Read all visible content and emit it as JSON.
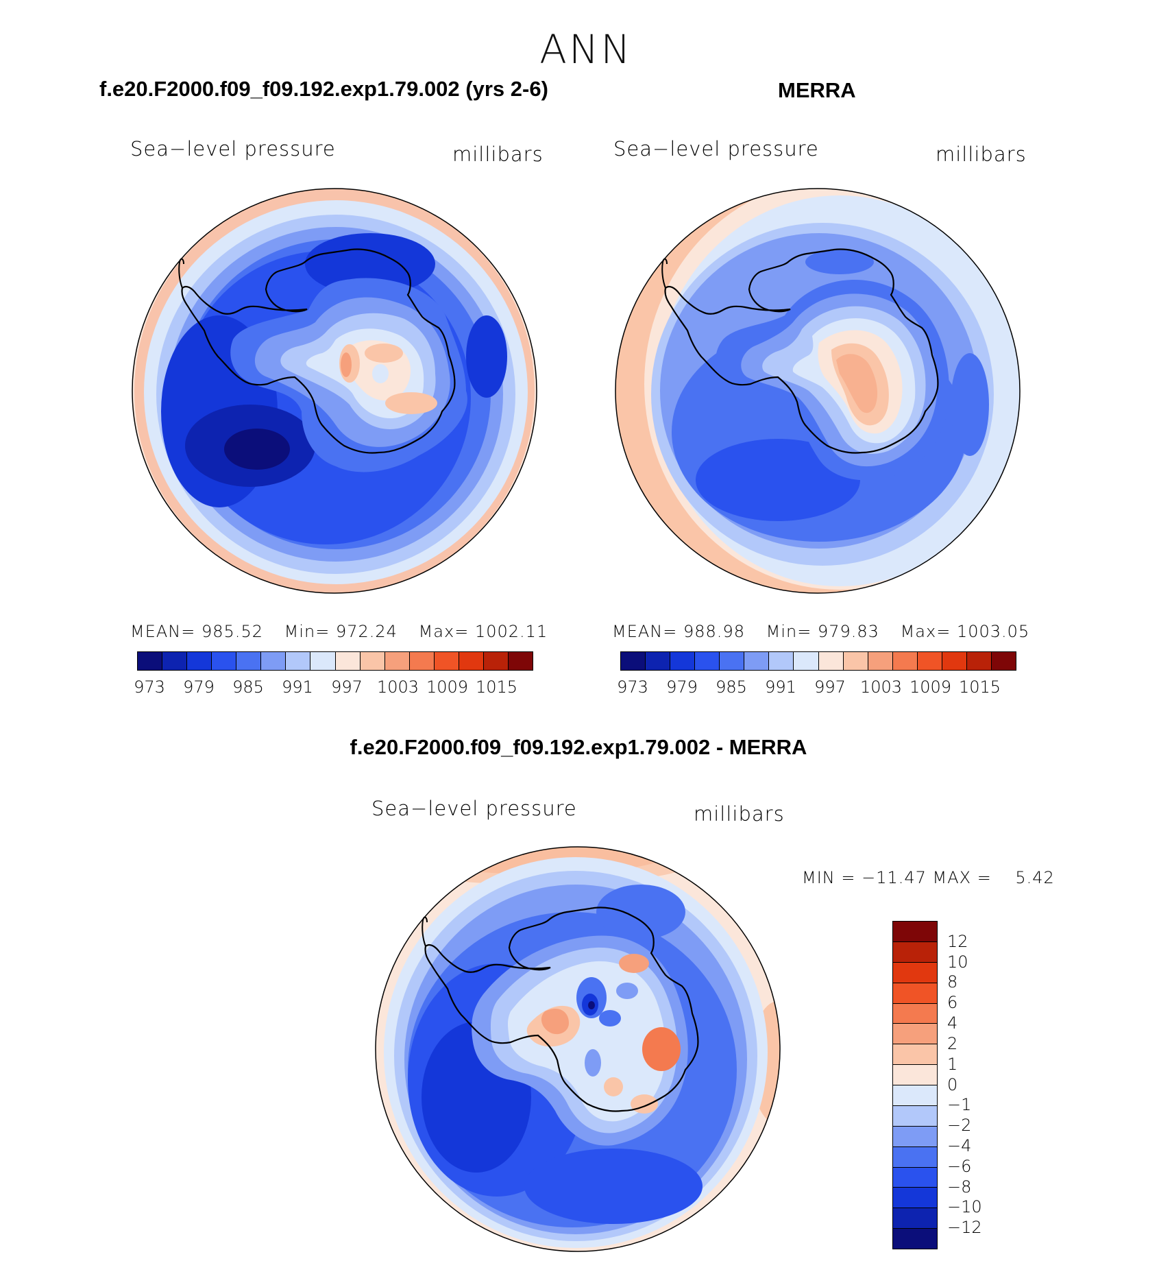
{
  "title": "ANN",
  "panels": [
    {
      "id": "model",
      "case_title": "f.e20.F2000.f09_f09.192.exp1.79.002 (yrs 2-6)",
      "variable": "Sea−level pressure",
      "units": "millibars",
      "mean_label": "MEAN=",
      "mean": "985.52",
      "min_label": "Min=",
      "min": "972.24",
      "max_label": "Max=",
      "max": "1002.11"
    },
    {
      "id": "obs",
      "case_title": "MERRA",
      "variable": "Sea−level pressure",
      "units": "millibars",
      "mean_label": "MEAN=",
      "mean": "988.98",
      "min_label": "Min=",
      "min": "979.83",
      "max_label": "Max=",
      "max": "1003.05"
    }
  ],
  "abs_colorbar": {
    "colors": [
      "#0b0e7a",
      "#0d23b0",
      "#1437d9",
      "#2a52ee",
      "#4a72f2",
      "#7e9cf5",
      "#b2c8fa",
      "#dbe8fb",
      "#fbe6da",
      "#fac5a8",
      "#f6a07c",
      "#f47a4f",
      "#f05426",
      "#e1380f",
      "#b92208",
      "#7e0607"
    ],
    "ticks": [
      "973",
      "979",
      "985",
      "991",
      "997",
      "1003",
      "1009",
      "1015"
    ]
  },
  "diff_panel": {
    "title": "f.e20.F2000.f09_f09.192.exp1.79.002 - MERRA",
    "variable": "Sea−level pressure",
    "units": "millibars",
    "minmax_text": "MIN = −11.47 MAX =    5.42"
  },
  "diff_colorbar": {
    "colors": [
      "#7e0607",
      "#b92208",
      "#e1380f",
      "#f05426",
      "#f47a4f",
      "#f6a07c",
      "#fac5a8",
      "#fbe6da",
      "#dbe8fb",
      "#b2c8fa",
      "#7e9cf5",
      "#4a72f2",
      "#2a52ee",
      "#1437d9",
      "#0d23b0",
      "#0b0e7a"
    ],
    "ticks": [
      "12",
      "10",
      "8",
      "6",
      "4",
      "2",
      "1",
      "0",
      "−1",
      "−2",
      "−4",
      "−6",
      "−8",
      "−10",
      "−12"
    ]
  }
}
